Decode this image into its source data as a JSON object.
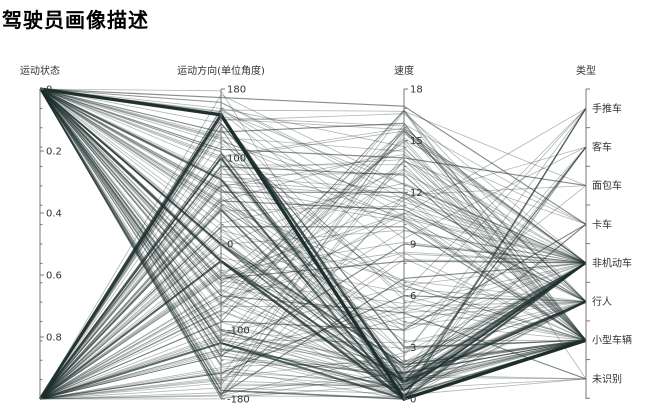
{
  "title": "驾驶员画像描述",
  "chart_data": {
    "type": "parallel",
    "title": "驾驶员画像描述",
    "line_color": "#1d2f2c",
    "axes": [
      {
        "name": "运动状态",
        "min": 0,
        "max": 1,
        "inverse": true,
        "ticks": [
          {
            "v": 0,
            "label": "0"
          },
          {
            "v": 0.2,
            "label": "0.2"
          },
          {
            "v": 0.4,
            "label": "0.4"
          },
          {
            "v": 0.6,
            "label": "0.6"
          },
          {
            "v": 0.8,
            "label": "0.8"
          }
        ]
      },
      {
        "name": "运动方向(单位角度)",
        "min": -180,
        "max": 180,
        "inverse": false,
        "ticks": [
          {
            "v": 180,
            "label": "180"
          },
          {
            "v": 100,
            "label": "100"
          },
          {
            "v": 0,
            "label": "0"
          },
          {
            "v": -100,
            "label": "-100"
          },
          {
            "v": -180,
            "label": "-180"
          }
        ]
      },
      {
        "name": "速度",
        "min": 0,
        "max": 18,
        "inverse": false,
        "ticks": [
          {
            "v": 18,
            "label": "18"
          },
          {
            "v": 15,
            "label": "15"
          },
          {
            "v": 12,
            "label": "12"
          },
          {
            "v": 9,
            "label": "9"
          },
          {
            "v": 6,
            "label": "6"
          },
          {
            "v": 3,
            "label": "3"
          },
          {
            "v": 0,
            "label": "0"
          }
        ]
      },
      {
        "name": "类型",
        "type": "category",
        "categories": [
          "手推车",
          "客车",
          "面包车",
          "卡车",
          "非机动车",
          "行人",
          "小型车辆",
          "未识别"
        ]
      }
    ],
    "series": [
      {
        "motion": 0,
        "dir": 150,
        "speed": 0,
        "type": "小型车辆",
        "weight": 6
      },
      {
        "motion": 0,
        "dir": 150,
        "speed": 1,
        "type": "行人",
        "weight": 4
      },
      {
        "motion": 1,
        "dir": 150,
        "speed": 0,
        "type": "小型车辆",
        "weight": 5
      },
      {
        "motion": 1,
        "dir": 100,
        "speed": 0.5,
        "type": "非机动车",
        "weight": 3
      },
      {
        "motion": 0,
        "dir": -20,
        "speed": 0,
        "type": "小型车辆",
        "weight": 4
      },
      {
        "motion": 0,
        "dir": 75,
        "speed": 0,
        "type": "小型车辆",
        "weight": 3
      },
      {
        "motion": 1,
        "dir": -20,
        "speed": 1,
        "type": "非机动车",
        "weight": 3
      },
      {
        "motion": 1,
        "dir": -115,
        "speed": 0,
        "type": "小型车辆",
        "weight": 3
      },
      {
        "motion": 0,
        "dir": -115,
        "speed": 0.5,
        "type": "非机动车",
        "weight": 2
      },
      {
        "motion": 0,
        "dir": -170,
        "speed": 0,
        "type": "小型车辆",
        "weight": 2
      },
      {
        "motion": 1,
        "dir": 40,
        "speed": 0,
        "type": "非机动车",
        "weight": 2
      },
      {
        "motion": 0,
        "dir": 0,
        "speed": 2,
        "type": "小型车辆",
        "weight": 2
      },
      {
        "motion": 0,
        "dir": 0,
        "speed": 0,
        "type": "手推车",
        "weight": 1.6
      },
      {
        "motion": 1,
        "dir": 0,
        "speed": 1,
        "type": "客车",
        "weight": 1
      },
      {
        "motion": 0,
        "dir": -90,
        "speed": 4,
        "type": "卡车",
        "weight": 1
      },
      {
        "motion": 0,
        "dir": 130,
        "speed": 16,
        "type": "小型车辆",
        "weight": 1
      },
      {
        "motion": 0,
        "dir": 110,
        "speed": 14,
        "type": "面包车",
        "weight": 1
      },
      {
        "motion": 0,
        "dir": 60,
        "speed": 12,
        "type": "行人",
        "weight": 1
      },
      {
        "motion": 1,
        "dir": 20,
        "speed": 10,
        "type": "小型车辆",
        "weight": 1
      },
      {
        "motion": 0,
        "dir": -40,
        "speed": 8,
        "type": "非机动车",
        "weight": 1
      },
      {
        "motion": 1,
        "dir": -150,
        "speed": 6,
        "type": "行人",
        "weight": 1
      },
      {
        "motion": 0,
        "dir": 170,
        "speed": 17,
        "type": "卡车",
        "weight": 1
      },
      {
        "motion": 1,
        "dir": 90,
        "speed": 13,
        "type": "小型车辆",
        "weight": 1
      },
      {
        "motion": 0,
        "dir": -130,
        "speed": 9,
        "type": "非机动车",
        "weight": 1
      },
      {
        "motion": 1,
        "dir": 50,
        "speed": 11,
        "type": "行人",
        "weight": 1
      },
      {
        "motion": 0,
        "dir": -60,
        "speed": 5,
        "type": "未识别",
        "weight": 1
      },
      {
        "motion": 1,
        "dir": 140,
        "speed": 3,
        "type": "小型车辆",
        "weight": 1
      },
      {
        "motion": 0,
        "dir": -175,
        "speed": 7,
        "type": "非机动车",
        "weight": 1
      }
    ],
    "background_lines": 170,
    "background_seed": 7
  }
}
